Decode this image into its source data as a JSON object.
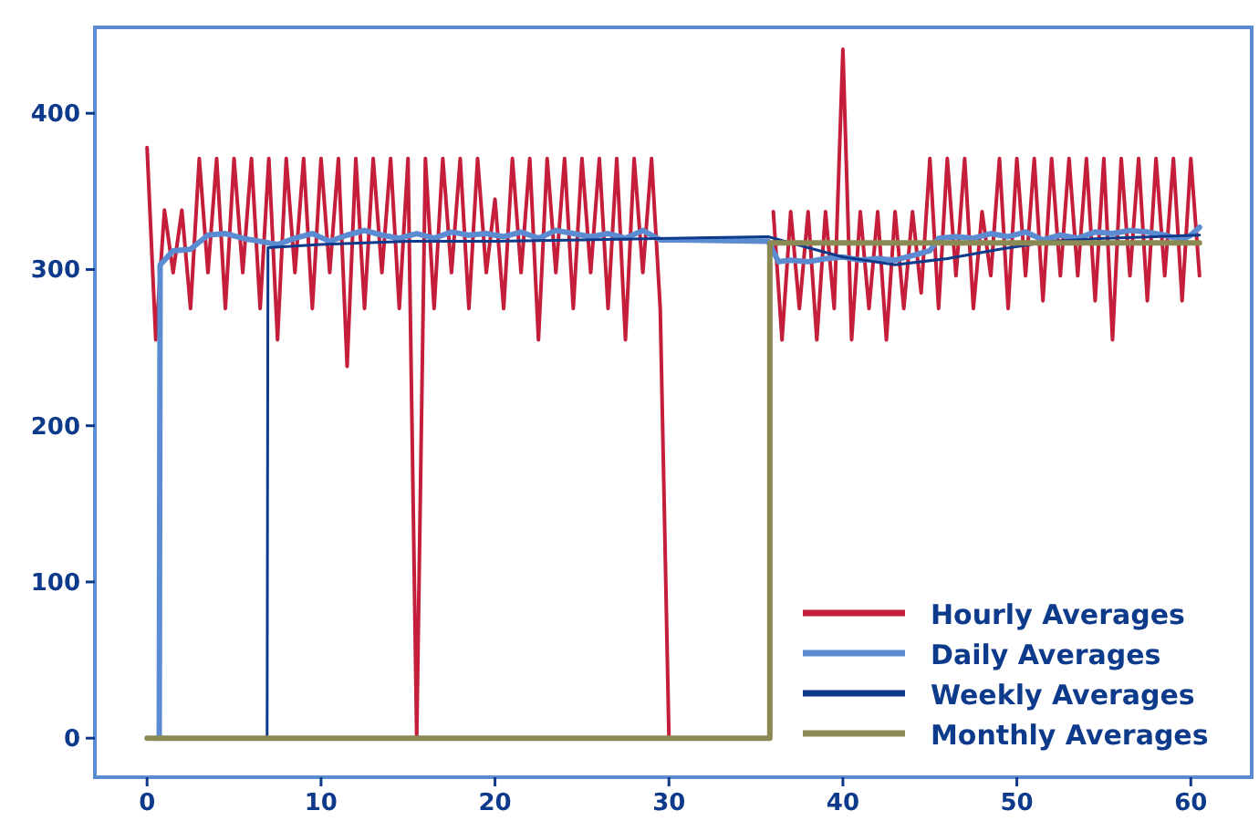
{
  "chart_data": {
    "type": "line",
    "xlim": [
      -3,
      63.5
    ],
    "ylim": [
      -25,
      455
    ],
    "xticks": [
      0,
      10,
      20,
      30,
      40,
      50,
      60
    ],
    "yticks": [
      0,
      100,
      200,
      300,
      400
    ],
    "grid": false,
    "legend": "bottom right",
    "marker": "none",
    "line_style": "solid",
    "x": [
      0,
      0.5,
      1,
      1.5,
      2,
      2.5,
      3,
      3.5,
      4,
      4.5,
      5,
      5.5,
      6,
      6.5,
      7,
      7.5,
      8,
      8.5,
      9,
      9.5,
      10,
      10.5,
      11,
      11.5,
      12,
      12.5,
      13,
      13.5,
      14,
      14.5,
      15,
      15.5,
      16,
      16.5,
      17,
      17.5,
      18,
      18.5,
      19,
      19.5,
      20,
      20.5,
      21,
      21.5,
      22,
      22.5,
      23,
      23.5,
      24,
      24.5,
      25,
      25.5,
      26,
      26.5,
      27,
      27.5,
      28,
      28.5,
      29,
      29.5,
      30,
      30.5,
      31,
      31.5,
      32,
      32.5,
      33,
      33.5,
      34,
      34.5,
      35,
      35.5,
      36,
      36.5,
      37,
      37.5,
      38,
      38.5,
      39,
      39.5,
      40,
      40.5,
      41,
      41.5,
      42,
      42.5,
      43,
      43.5,
      44,
      44.5,
      45,
      45.5,
      46,
      46.5,
      47,
      47.5,
      48,
      48.5,
      49,
      49.5,
      50,
      50.5,
      51,
      51.5,
      52,
      52.5,
      53,
      53.5,
      54,
      54.5,
      55,
      55.5,
      56,
      56.5,
      57,
      57.5,
      58,
      58.5,
      59,
      59.5,
      60,
      60.5
    ],
    "series": [
      {
        "name": "Hourly Averages",
        "color": "#c41e3a",
        "values": [
          378,
          255,
          338,
          298,
          338,
          275,
          371,
          298,
          371,
          275,
          371,
          298,
          371,
          275,
          371,
          255,
          371,
          298,
          371,
          275,
          371,
          298,
          371,
          238,
          371,
          275,
          371,
          298,
          371,
          275,
          371,
          0,
          371,
          275,
          371,
          298,
          371,
          275,
          371,
          298,
          345,
          275,
          371,
          298,
          371,
          255,
          371,
          298,
          371,
          275,
          371,
          298,
          371,
          275,
          371,
          255,
          371,
          298,
          371,
          275,
          0,
          null,
          null,
          null,
          null,
          null,
          null,
          null,
          null,
          null,
          null,
          null,
          337,
          255,
          337,
          275,
          337,
          255,
          337,
          275,
          441,
          255,
          337,
          275,
          337,
          255,
          337,
          275,
          337,
          285,
          371,
          275,
          371,
          296,
          371,
          275,
          337,
          296,
          371,
          275,
          371,
          296,
          371,
          280,
          371,
          296,
          371,
          296,
          371,
          280,
          371,
          255,
          371,
          296,
          371,
          280,
          371,
          296,
          371,
          280,
          371,
          296
        ]
      },
      {
        "name": "Daily Averages",
        "color": "#5b8bd0",
        "x": [
          0.7,
          0.75,
          1.5,
          2.5,
          3.5,
          4.5,
          5.5,
          6.5,
          7.5,
          8.5,
          9.5,
          10.5,
          11.5,
          12.5,
          13.5,
          14.5,
          15.5,
          16.5,
          17.5,
          18.5,
          19.5,
          20.5,
          21.5,
          22.5,
          23.5,
          24.5,
          25.5,
          26.5,
          27.5,
          28.5,
          29.5,
          30.5,
          35.7,
          36.3,
          37,
          38,
          39,
          40,
          41,
          42,
          43,
          44,
          45,
          45.5,
          46.5,
          47.5,
          48.5,
          49.5,
          50.5,
          51.5,
          52.5,
          53.5,
          54.5,
          55.5,
          56.5,
          57.5,
          58.5,
          59.5,
          60,
          60.5
        ],
        "values": [
          0,
          303,
          312,
          313,
          322,
          323,
          320,
          318,
          316,
          320,
          323,
          318,
          322,
          325,
          322,
          320,
          323,
          320,
          324,
          322,
          323,
          321,
          324,
          320,
          325,
          323,
          321,
          323,
          320,
          325,
          319,
          319,
          318,
          305,
          306,
          305,
          307,
          308,
          306,
          307,
          306,
          309,
          312,
          320,
          321,
          320,
          323,
          321,
          324,
          319,
          322,
          320,
          324,
          323,
          325,
          324,
          322,
          319,
          322,
          327
        ]
      },
      {
        "name": "Weekly Averages",
        "color": "#0d3a8a",
        "x": [
          6.9,
          6.95,
          10,
          15,
          20,
          25,
          30,
          35.7,
          38,
          40,
          43,
          46,
          49,
          52,
          55,
          58,
          60.5
        ],
        "values": [
          0,
          314,
          316,
          318,
          318,
          319,
          320,
          321,
          314,
          308,
          303,
          307,
          313,
          318,
          320,
          321,
          322
        ]
      },
      {
        "name": "Monthly Averages",
        "color": "#8b8a55",
        "x": [
          0,
          35.8,
          35.8,
          60.5
        ],
        "values": [
          0,
          0,
          317,
          317
        ]
      }
    ]
  }
}
